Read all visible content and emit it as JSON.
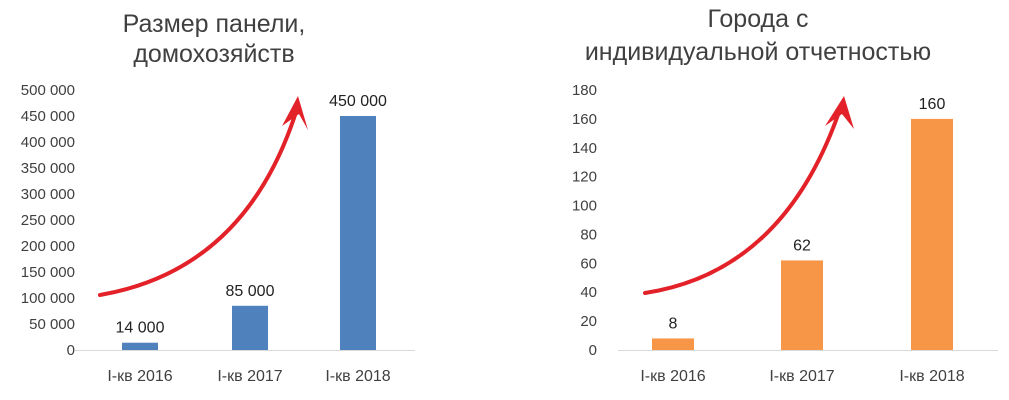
{
  "chart_data": [
    {
      "type": "bar",
      "title": [
        "Размер панели,",
        "домохозяйств"
      ],
      "categories": [
        "I-кв 2016",
        "I-кв 2017",
        "I-кв 2018"
      ],
      "values": [
        14000,
        85000,
        450000
      ],
      "value_labels": [
        "14 000",
        "85 000",
        "450 000"
      ],
      "ylim": [
        0,
        500000
      ],
      "yticks": [
        0,
        50000,
        100000,
        150000,
        200000,
        250000,
        300000,
        350000,
        400000,
        450000,
        500000
      ],
      "ytick_labels": [
        "0",
        "50 000",
        "100 000",
        "150 000",
        "200 000",
        "250 000",
        "300 000",
        "350 000",
        "400 000",
        "450 000",
        "500 000"
      ],
      "grid": false,
      "bar_color": "#4f81bd",
      "annotation": "growth-arrow",
      "arrow_color": "#e32128"
    },
    {
      "type": "bar",
      "title": [
        "Города с",
        "индивидуальной отчетностью"
      ],
      "categories": [
        "I-кв 2016",
        "I-кв 2017",
        "I-кв 2018"
      ],
      "values": [
        8,
        62,
        160
      ],
      "value_labels": [
        "8",
        "62",
        "160"
      ],
      "ylim": [
        0,
        180
      ],
      "yticks": [
        0,
        20,
        40,
        60,
        80,
        100,
        120,
        140,
        160,
        180
      ],
      "ytick_labels": [
        "0",
        "20",
        "40",
        "60",
        "80",
        "100",
        "120",
        "140",
        "160",
        "180"
      ],
      "grid": false,
      "bar_color": "#f79646",
      "annotation": "growth-arrow",
      "arrow_color": "#e32128"
    }
  ]
}
